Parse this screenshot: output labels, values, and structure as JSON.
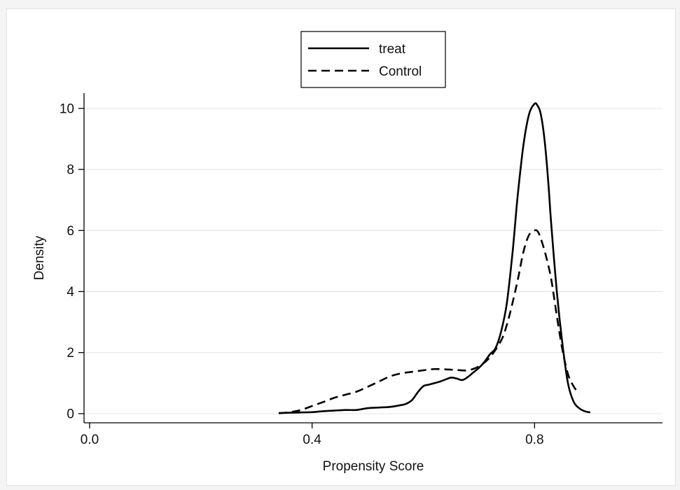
{
  "chart_data": {
    "type": "line",
    "title": "",
    "xlabel": "Propensity Score",
    "ylabel": "Density",
    "xlim": [
      -0.01,
      1.03
    ],
    "ylim": [
      -0.3,
      10.5
    ],
    "xticks": [
      0.0,
      0.4,
      0.8
    ],
    "xtick_labels": [
      "0.0",
      "0.4",
      "0.8"
    ],
    "yticks": [
      0,
      2,
      4,
      6,
      8,
      10
    ],
    "ytick_labels": [
      "0",
      "2",
      "4",
      "6",
      "8",
      "10"
    ],
    "grid": "horizontal",
    "legend_position": "top-center",
    "series": [
      {
        "name": "treat",
        "style": "solid",
        "color": "#000000",
        "x": [
          0.34,
          0.36,
          0.38,
          0.4,
          0.42,
          0.44,
          0.46,
          0.48,
          0.5,
          0.52,
          0.54,
          0.56,
          0.57,
          0.58,
          0.59,
          0.6,
          0.61,
          0.62,
          0.63,
          0.64,
          0.65,
          0.66,
          0.67,
          0.68,
          0.69,
          0.7,
          0.71,
          0.72,
          0.73,
          0.74,
          0.75,
          0.76,
          0.765,
          0.77,
          0.78,
          0.79,
          0.8,
          0.805,
          0.81,
          0.815,
          0.82,
          0.825,
          0.83,
          0.84,
          0.85,
          0.86,
          0.87,
          0.88,
          0.89,
          0.9
        ],
        "y": [
          0.02,
          0.03,
          0.04,
          0.05,
          0.08,
          0.1,
          0.12,
          0.12,
          0.18,
          0.2,
          0.22,
          0.28,
          0.33,
          0.45,
          0.7,
          0.9,
          0.95,
          1.0,
          1.05,
          1.12,
          1.18,
          1.15,
          1.1,
          1.2,
          1.35,
          1.5,
          1.7,
          1.95,
          2.15,
          2.7,
          3.6,
          5.2,
          6.2,
          7.2,
          8.8,
          9.8,
          10.15,
          10.1,
          9.9,
          9.4,
          8.6,
          7.5,
          6.2,
          4.0,
          2.3,
          1.0,
          0.4,
          0.18,
          0.08,
          0.04
        ]
      },
      {
        "name": "Control",
        "style": "dashed",
        "color": "#000000",
        "x": [
          0.34,
          0.36,
          0.38,
          0.4,
          0.42,
          0.44,
          0.46,
          0.48,
          0.5,
          0.52,
          0.54,
          0.56,
          0.58,
          0.6,
          0.62,
          0.64,
          0.66,
          0.68,
          0.7,
          0.72,
          0.74,
          0.75,
          0.76,
          0.77,
          0.78,
          0.79,
          0.8,
          0.805,
          0.81,
          0.82,
          0.83,
          0.84,
          0.85,
          0.86,
          0.87,
          0.88
        ],
        "y": [
          0.01,
          0.05,
          0.12,
          0.25,
          0.38,
          0.52,
          0.62,
          0.72,
          0.88,
          1.05,
          1.22,
          1.32,
          1.37,
          1.42,
          1.46,
          1.45,
          1.43,
          1.42,
          1.55,
          1.85,
          2.4,
          2.9,
          3.6,
          4.4,
          5.3,
          5.85,
          6.0,
          5.98,
          5.8,
          5.2,
          4.4,
          3.2,
          2.1,
          1.3,
          0.9,
          0.65
        ]
      }
    ]
  }
}
